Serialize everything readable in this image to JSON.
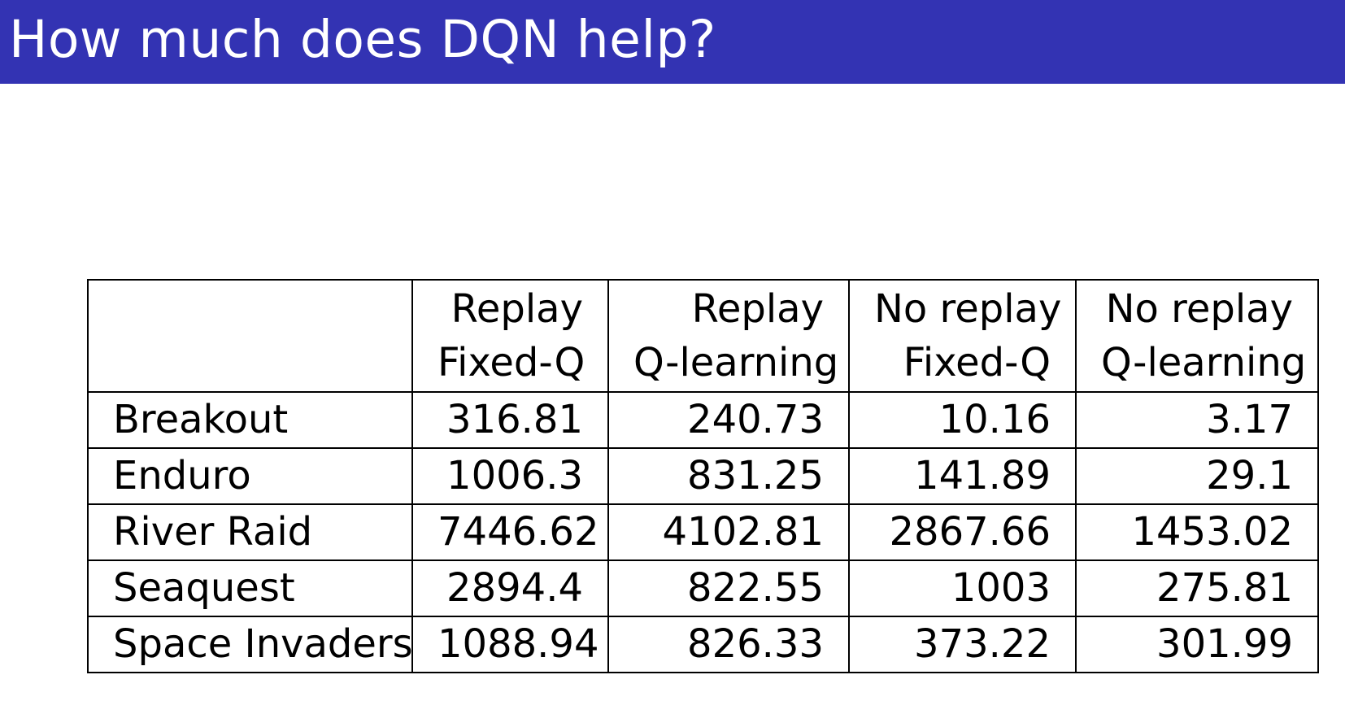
{
  "slide": {
    "title": "How much does DQN help?",
    "accent_color": "#3333B3"
  },
  "table": {
    "columns": [
      {
        "line1": "Replay",
        "line2": "Fixed-Q"
      },
      {
        "line1": "Replay",
        "line2": "Q-learning"
      },
      {
        "line1": "No replay",
        "line2": "Fixed-Q"
      },
      {
        "line1": "No replay",
        "line2": "Q-learning"
      }
    ],
    "rows": [
      {
        "game": "Breakout",
        "values": [
          "316.81",
          "240.73",
          "10.16",
          "3.17"
        ]
      },
      {
        "game": "Enduro",
        "values": [
          "1006.3",
          "831.25",
          "141.89",
          "29.1"
        ]
      },
      {
        "game": "River Raid",
        "values": [
          "7446.62",
          "4102.81",
          "2867.66",
          "1453.02"
        ]
      },
      {
        "game": "Seaquest",
        "values": [
          "2894.4",
          "822.55",
          "1003",
          "275.81"
        ]
      },
      {
        "game": "Space Invaders",
        "values": [
          "1088.94",
          "826.33",
          "373.22",
          "301.99"
        ]
      }
    ]
  }
}
